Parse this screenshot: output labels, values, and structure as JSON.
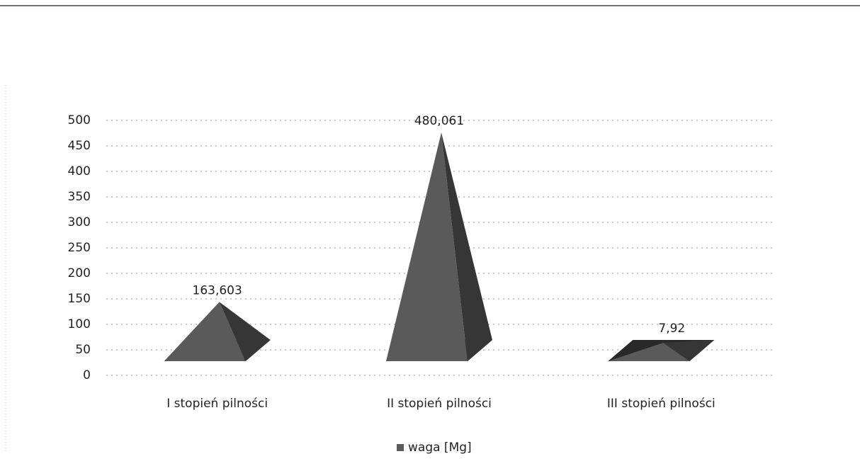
{
  "chart_data": {
    "type": "pyramid",
    "categories": [
      "I stopień pilności",
      "II stopień pilności",
      "III stopień pilności"
    ],
    "series": [
      {
        "name": "waga [Mg]",
        "color": "#5a5a5a",
        "values": [
          163.603,
          480.061,
          7.92
        ],
        "value_labels": [
          "163,603",
          "480,061",
          "7,92"
        ]
      }
    ],
    "ylim": [
      0,
      500
    ],
    "yticks": [
      0,
      50,
      100,
      150,
      200,
      250,
      300,
      350,
      400,
      450,
      500
    ],
    "grid": true,
    "legend": "bottom"
  }
}
